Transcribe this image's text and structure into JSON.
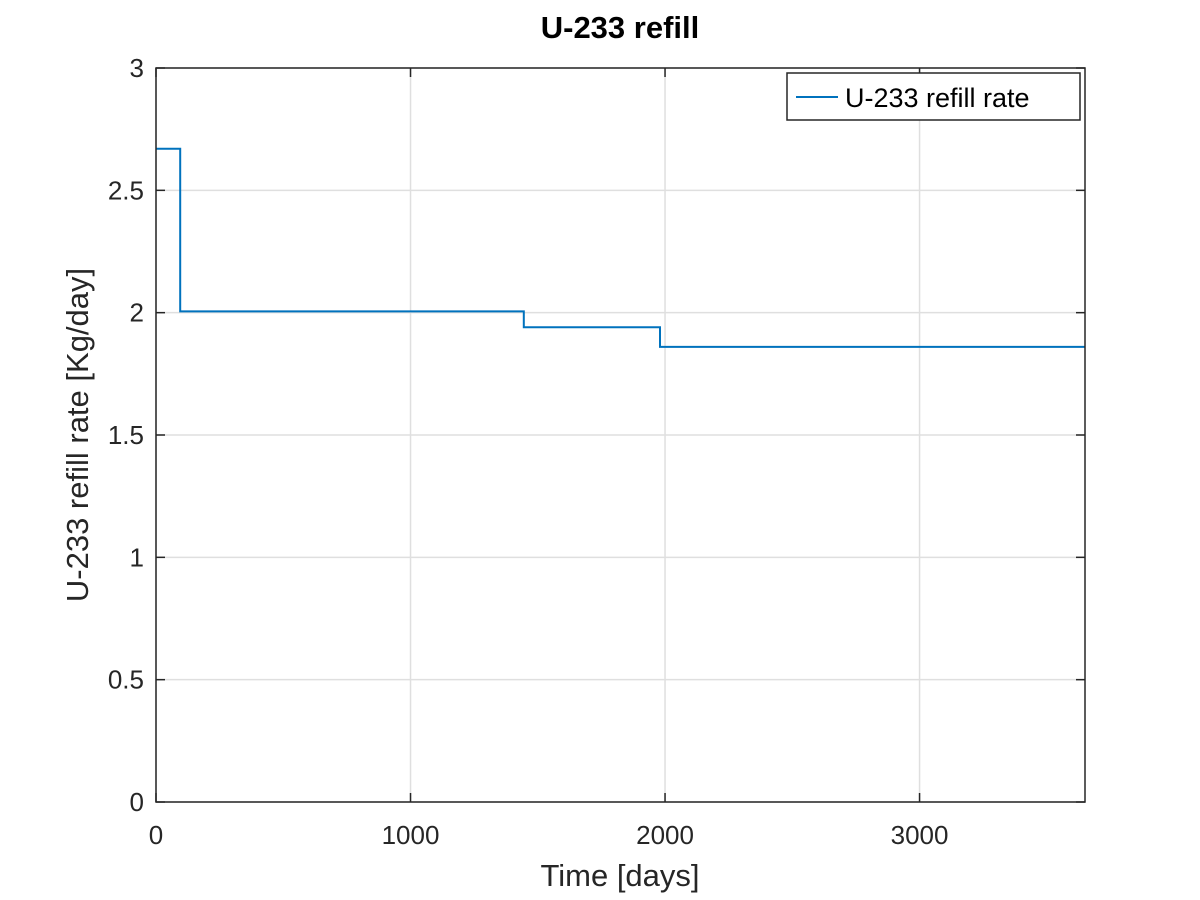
{
  "chart_data": {
    "type": "line",
    "title": "U-233 refill",
    "xlabel": "Time [days]",
    "ylabel": "U-233 refill rate [Kg/day]",
    "xlim": [
      0,
      3650
    ],
    "ylim": [
      0,
      3
    ],
    "xticks": [
      0,
      1000,
      2000,
      3000
    ],
    "xtick_labels": [
      "0",
      "1000",
      "2000",
      "3000"
    ],
    "yticks": [
      0,
      0.5,
      1,
      1.5,
      2,
      2.5,
      3
    ],
    "ytick_labels": [
      "0",
      "0.5",
      "1",
      "1.5",
      "2",
      "2.5",
      "3"
    ],
    "grid": true,
    "legend_position": "top-right",
    "series": [
      {
        "name": "U-233 refill rate",
        "color": "#0072BD",
        "step": true,
        "x": [
          0,
          95,
          95,
          1445,
          1445,
          1980,
          1980,
          3650
        ],
        "y": [
          2.67,
          2.67,
          2.005,
          2.005,
          1.94,
          1.94,
          1.86,
          1.86
        ]
      }
    ]
  }
}
